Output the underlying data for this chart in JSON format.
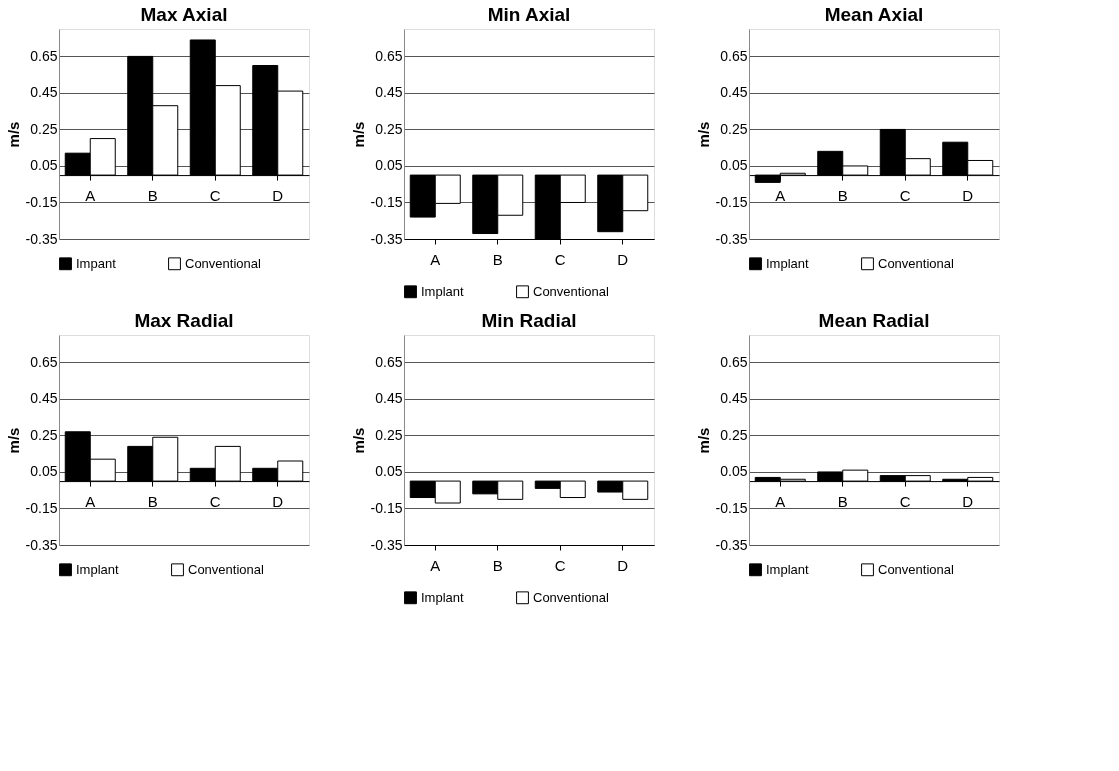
{
  "chart_data": [
    {
      "type": "bar",
      "title": "Max Axial",
      "ylabel": "m/s",
      "categories": [
        "A",
        "B",
        "C",
        "D"
      ],
      "ylim": [
        -0.35,
        0.8
      ],
      "yticks": [
        -0.35,
        -0.15,
        0.05,
        0.25,
        0.45,
        0.65
      ],
      "grid": "y",
      "legend": "bottom",
      "series": [
        {
          "name": "Impant",
          "color": "#000000",
          "values": [
            0.12,
            0.65,
            0.74,
            0.6
          ]
        },
        {
          "name": "Conventional",
          "color": "#ffffff",
          "values": [
            0.2,
            0.38,
            0.49,
            0.46
          ]
        }
      ]
    },
    {
      "type": "bar",
      "title": "Min Axial",
      "ylabel": "m/s",
      "categories": [
        "A",
        "B",
        "C",
        "D"
      ],
      "ylim": [
        -0.35,
        0.8
      ],
      "yticks": [
        -0.35,
        -0.15,
        0.05,
        0.25,
        0.45,
        0.65
      ],
      "grid": "y",
      "legend": "bottom",
      "series": [
        {
          "name": "Implant",
          "color": "#000000",
          "values": [
            -0.23,
            -0.32,
            -0.35,
            -0.31
          ]
        },
        {
          "name": "Conventional",
          "color": "#ffffff",
          "values": [
            -0.155,
            -0.22,
            -0.15,
            -0.195
          ]
        }
      ]
    },
    {
      "type": "bar",
      "title": "Mean Axial",
      "ylabel": "m/s",
      "categories": [
        "A",
        "B",
        "C",
        "D"
      ],
      "ylim": [
        -0.35,
        0.8
      ],
      "yticks": [
        -0.35,
        -0.15,
        0.05,
        0.25,
        0.45,
        0.65
      ],
      "grid": "y",
      "legend": "bottom",
      "series": [
        {
          "name": "Implant",
          "color": "#000000",
          "values": [
            -0.04,
            0.13,
            0.25,
            0.18
          ]
        },
        {
          "name": "Conventional",
          "color": "#ffffff",
          "values": [
            0.01,
            0.05,
            0.09,
            0.08
          ]
        }
      ]
    },
    {
      "type": "bar",
      "title": "Max Radial",
      "ylabel": "m/s",
      "categories": [
        "A",
        "B",
        "C",
        "D"
      ],
      "ylim": [
        -0.35,
        0.8
      ],
      "yticks": [
        -0.35,
        -0.15,
        0.05,
        0.25,
        0.45,
        0.65
      ],
      "grid": "y",
      "legend": "bottom",
      "series": [
        {
          "name": "Implant",
          "color": "#000000",
          "values": [
            0.27,
            0.19,
            0.07,
            0.07
          ]
        },
        {
          "name": "Conventional",
          "color": "#ffffff",
          "values": [
            0.12,
            0.24,
            0.19,
            0.11
          ]
        }
      ]
    },
    {
      "type": "bar",
      "title": "Min Radial",
      "ylabel": "m/s",
      "categories": [
        "A",
        "B",
        "C",
        "D"
      ],
      "ylim": [
        -0.35,
        0.8
      ],
      "yticks": [
        -0.35,
        -0.15,
        0.05,
        0.25,
        0.45,
        0.65
      ],
      "grid": "y",
      "legend": "bottom",
      "series": [
        {
          "name": "Implant",
          "color": "#000000",
          "values": [
            -0.09,
            -0.07,
            -0.04,
            -0.06
          ]
        },
        {
          "name": "Conventional",
          "color": "#ffffff",
          "values": [
            -0.12,
            -0.1,
            -0.09,
            -0.1
          ]
        }
      ]
    },
    {
      "type": "bar",
      "title": "Mean Radial",
      "ylabel": "m/s",
      "categories": [
        "A",
        "B",
        "C",
        "D"
      ],
      "ylim": [
        -0.35,
        0.8
      ],
      "yticks": [
        -0.35,
        -0.15,
        0.05,
        0.25,
        0.45,
        0.65
      ],
      "grid": "y",
      "legend": "bottom",
      "series": [
        {
          "name": "Implant",
          "color": "#000000",
          "values": [
            0.02,
            0.05,
            0.03,
            0.01
          ]
        },
        {
          "name": "Conventional",
          "color": "#ffffff",
          "values": [
            0.01,
            0.06,
            0.03,
            0.02
          ]
        }
      ]
    }
  ]
}
